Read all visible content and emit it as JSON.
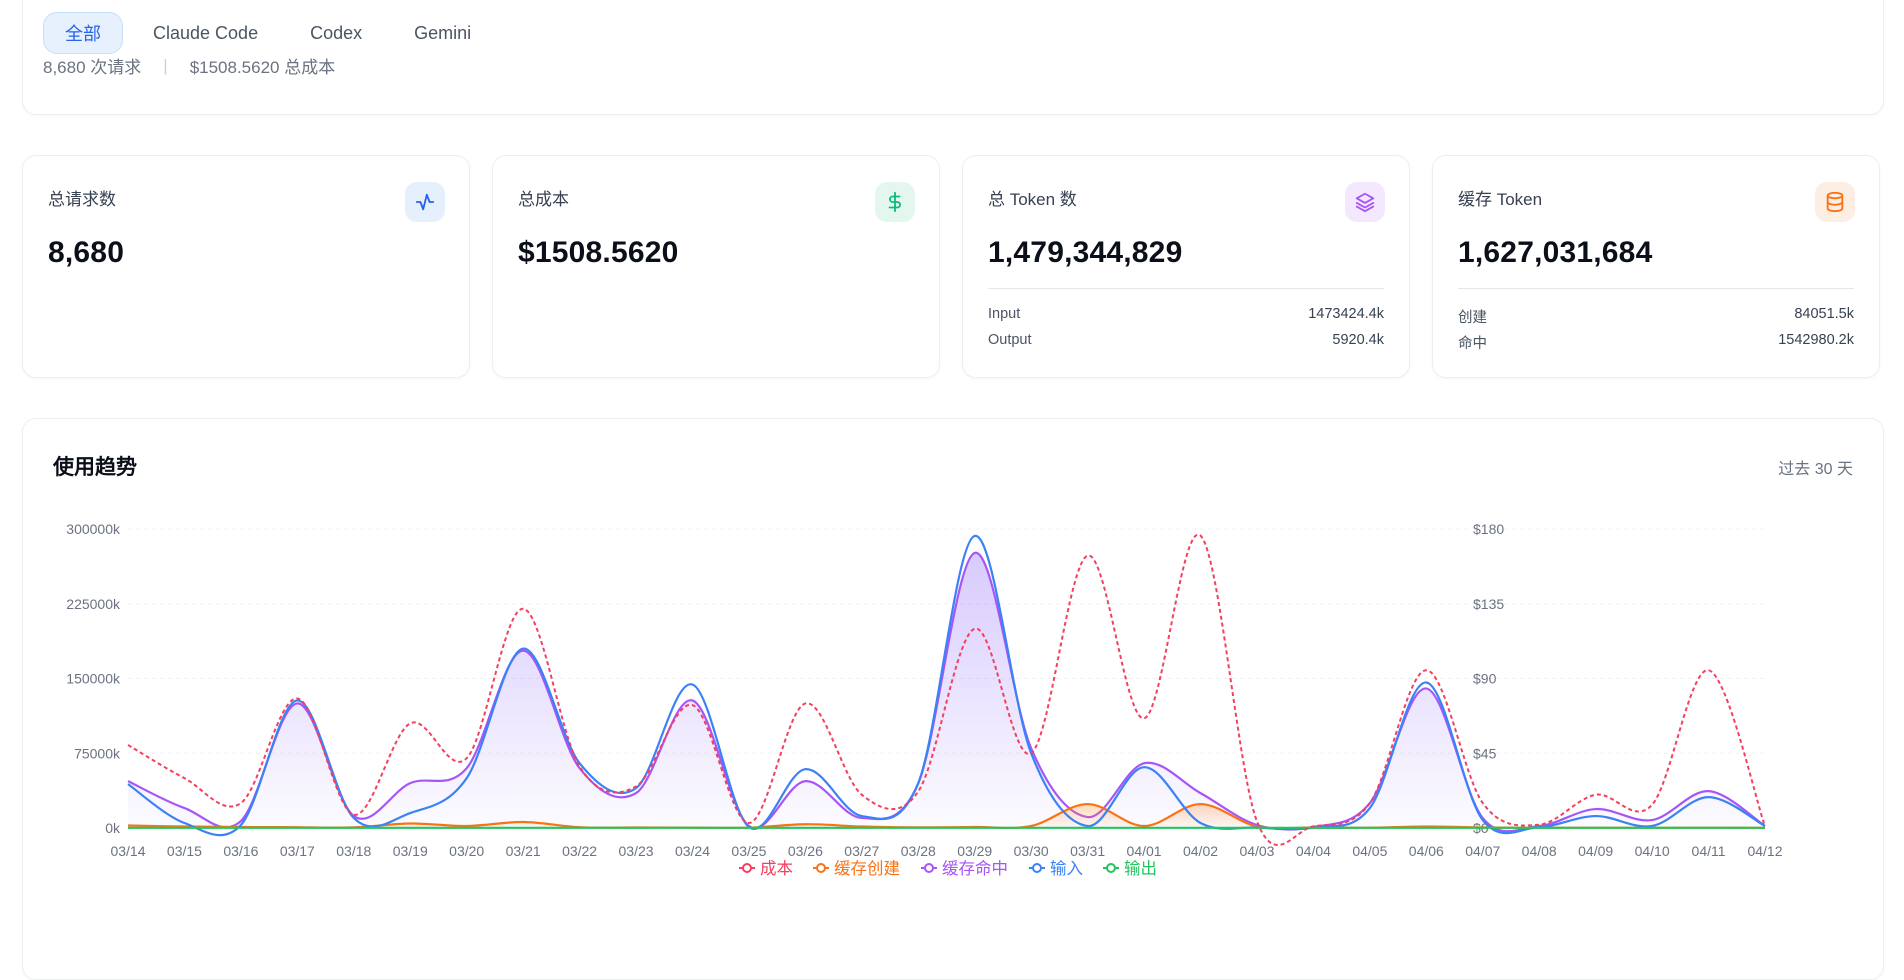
{
  "tabs": [
    {
      "label": "全部",
      "active": true
    },
    {
      "label": "Claude Code",
      "active": false
    },
    {
      "label": "Codex",
      "active": false
    },
    {
      "label": "Gemini",
      "active": false
    }
  ],
  "summary": {
    "requests": "8,680 次请求",
    "separator": "|",
    "cost": "$1508.5620 总成本"
  },
  "stats": {
    "requests": {
      "label": "总请求数",
      "value": "8,680",
      "icon": "activity-icon",
      "color": "#2563eb"
    },
    "cost": {
      "label": "总成本",
      "value": "$1508.5620",
      "icon": "dollar-icon",
      "color": "#10b981"
    },
    "tokens": {
      "label": "总 Token 数",
      "value": "1,479,344,829",
      "icon": "layers-icon",
      "color": "#a855f7",
      "rows": [
        {
          "k": "Input",
          "v": "1473424.4k"
        },
        {
          "k": "Output",
          "v": "5920.4k"
        }
      ]
    },
    "cache": {
      "label": "缓存 Token",
      "value": "1,627,031,684",
      "icon": "database-icon",
      "color": "#f97316",
      "rows": [
        {
          "k": "创建",
          "v": "84051.5k"
        },
        {
          "k": "命中",
          "v": "1542980.2k"
        }
      ]
    }
  },
  "trend": {
    "title": "使用趋势",
    "range": "过去 30 天"
  },
  "chart_data": {
    "type": "line",
    "categories": [
      "03/14",
      "03/15",
      "03/16",
      "03/17",
      "03/18",
      "03/19",
      "03/20",
      "03/21",
      "03/22",
      "03/23",
      "03/24",
      "03/25",
      "03/26",
      "03/27",
      "03/28",
      "03/29",
      "03/30",
      "03/31",
      "04/01",
      "04/02",
      "04/03",
      "04/04",
      "04/05",
      "04/06",
      "04/07",
      "04/08",
      "04/09",
      "04/10",
      "04/11",
      "04/12"
    ],
    "y_left": {
      "ticks": [
        "0k",
        "75000k",
        "150000k",
        "225000k",
        "300000k"
      ],
      "ylim": [
        0,
        300000
      ]
    },
    "y_right": {
      "ticks": [
        "$0",
        "$45",
        "$90",
        "$135",
        "$180"
      ],
      "ylim": [
        0,
        180
      ]
    },
    "grid": "horizontal dashed",
    "legend_position": "bottom",
    "series": [
      {
        "name": "成本",
        "axis": "right",
        "color": "#f43f5e",
        "dashed": true,
        "values": [
          50,
          30,
          15,
          78,
          8,
          63,
          42,
          132,
          37,
          25,
          74,
          3,
          75,
          20,
          22,
          120,
          45,
          164,
          66,
          176,
          4,
          1,
          15,
          95,
          15,
          2,
          20,
          14,
          95,
          1
        ]
      },
      {
        "name": "缓存创建",
        "axis": "left",
        "color": "#f97316",
        "values": [
          2500,
          1500,
          1000,
          800,
          600,
          4500,
          2000,
          6000,
          800,
          500,
          400,
          300,
          3800,
          1500,
          700,
          1000,
          2000,
          24000,
          2000,
          24000,
          1500,
          500,
          300,
          1500,
          500,
          300,
          300,
          200,
          300,
          200
        ]
      },
      {
        "name": "缓存命中",
        "axis": "left",
        "color": "#a855f7",
        "fill": true,
        "values": [
          47000,
          20000,
          7000,
          125000,
          12000,
          45000,
          60000,
          178000,
          60000,
          35000,
          128000,
          2000,
          47000,
          10000,
          45000,
          276000,
          80000,
          11000,
          65000,
          35000,
          3000,
          1000,
          25000,
          140000,
          10000,
          2000,
          19000,
          8000,
          37000,
          2000
        ]
      },
      {
        "name": "输入",
        "axis": "left",
        "color": "#3b82f6",
        "values": [
          44000,
          5000,
          3000,
          128000,
          10000,
          15000,
          50000,
          180000,
          65000,
          40000,
          144000,
          1000,
          59000,
          12000,
          45000,
          293000,
          75000,
          2000,
          61000,
          5000,
          500,
          500,
          20000,
          146000,
          8000,
          1000,
          12000,
          2000,
          31000,
          2000
        ]
      },
      {
        "name": "输出",
        "axis": "left",
        "color": "#22c55e",
        "values": [
          200,
          200,
          200,
          200,
          200,
          200,
          200,
          200,
          200,
          200,
          200,
          200,
          200,
          200,
          200,
          200,
          200,
          200,
          200,
          200,
          200,
          200,
          200,
          200,
          200,
          200,
          200,
          200,
          200,
          200
        ]
      }
    ]
  }
}
